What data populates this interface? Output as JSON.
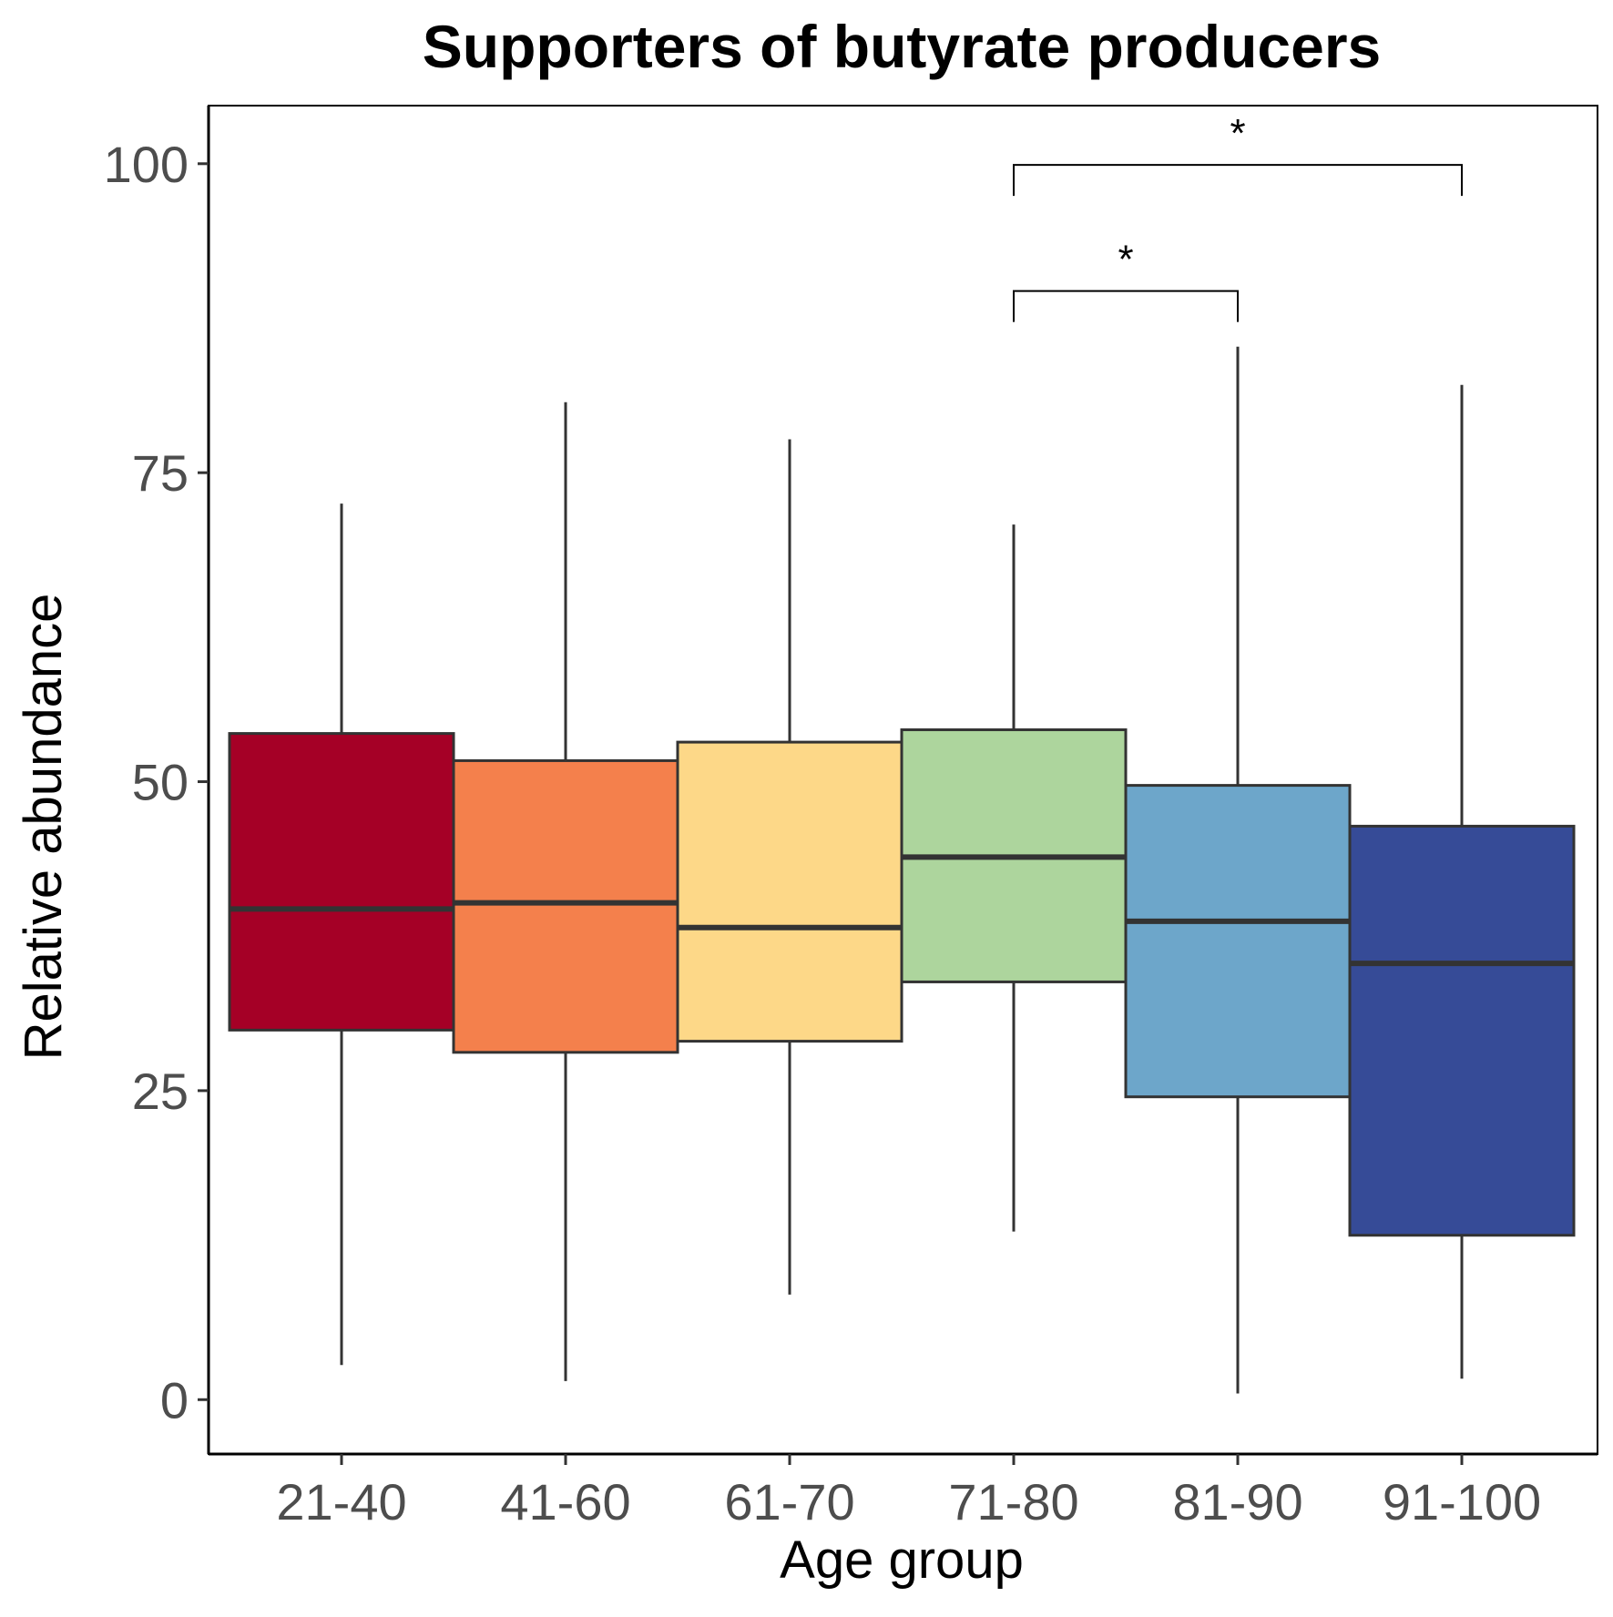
{
  "chart_data": {
    "type": "box",
    "title": "Supporters of butyrate producers",
    "xlabel": "Age group",
    "ylabel": "Relative abundance",
    "categories": [
      "21-40",
      "41-60",
      "61-70",
      "71-80",
      "81-90",
      "91-100"
    ],
    "boxes": [
      {
        "category": "21-40",
        "whisker_low": 2.8,
        "q1": 29.9,
        "median": 39.7,
        "q3": 53.9,
        "whisker_high": 72.5,
        "color": "#a50026"
      },
      {
        "category": "41-60",
        "whisker_low": 1.5,
        "q1": 28.1,
        "median": 40.2,
        "q3": 51.7,
        "whisker_high": 80.7,
        "color": "#f4804c"
      },
      {
        "category": "61-70",
        "whisker_low": 8.5,
        "q1": 29.0,
        "median": 38.2,
        "q3": 53.2,
        "whisker_high": 77.7,
        "color": "#fdd888"
      },
      {
        "category": "71-80",
        "whisker_low": 13.6,
        "q1": 33.8,
        "median": 43.9,
        "q3": 54.2,
        "whisker_high": 70.8,
        "color": "#add59d"
      },
      {
        "category": "81-90",
        "whisker_low": 0.5,
        "q1": 24.5,
        "median": 38.7,
        "q3": 49.7,
        "whisker_high": 85.2,
        "color": "#6da6ca"
      },
      {
        "category": "91-100",
        "whisker_low": 1.7,
        "q1": 13.3,
        "median": 35.3,
        "q3": 46.4,
        "whisker_high": 82.1,
        "color": "#364b97"
      }
    ],
    "yticks": [
      "0",
      "25",
      "50",
      "75",
      "100"
    ],
    "ytick_values": [
      0,
      25,
      50,
      75,
      100
    ],
    "ylim": [
      -4.4,
      104.7
    ],
    "grid": false,
    "legend": "none",
    "significance": [
      {
        "from": "71-80",
        "to": "81-90",
        "y": 89.7,
        "label": "*"
      },
      {
        "from": "71-80",
        "to": "91-100",
        "y": 99.9,
        "label": "*"
      }
    ]
  }
}
